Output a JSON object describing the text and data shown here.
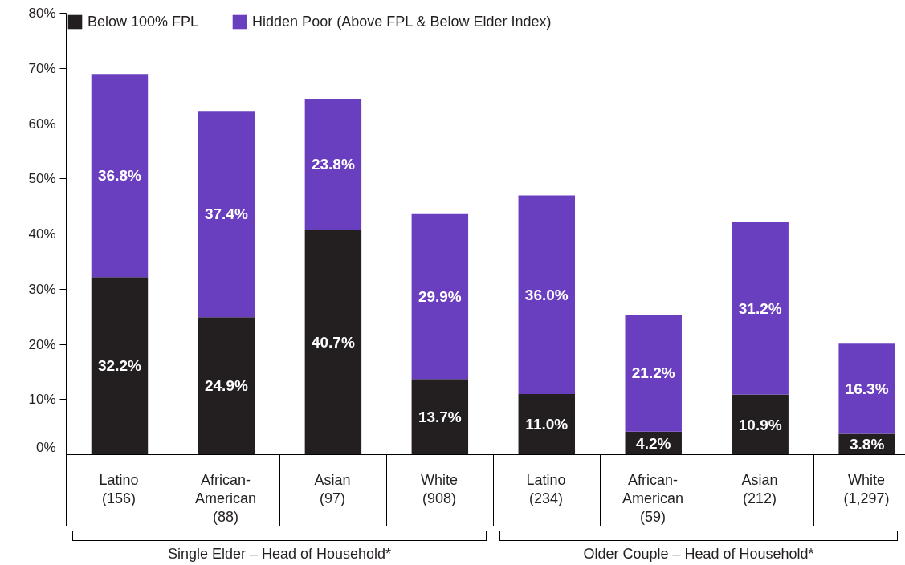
{
  "chart_data": {
    "type": "bar",
    "stacked": true,
    "categories": [
      "Latino\n(156)",
      "African-\nAmerican\n(88)",
      "Asian\n(97)",
      "White\n(908)",
      "Latino\n(234)",
      "African-\nAmerican\n(59)",
      "Asian\n(212)",
      "White\n(1,297)"
    ],
    "series": [
      {
        "name": "Below 100% FPL",
        "color": "#231f20",
        "values": [
          32.2,
          24.9,
          40.7,
          13.7,
          11.0,
          4.2,
          10.9,
          3.8
        ],
        "value_labels": [
          "32.2%",
          "24.9%",
          "40.7%",
          "13.7%",
          "11.0%",
          "4.2%",
          "10.9%",
          "3.8%"
        ]
      },
      {
        "name": "Hidden Poor (Above FPL & Below Elder Index)",
        "color": "#6a3fbf",
        "values": [
          36.8,
          37.4,
          23.8,
          29.9,
          36.0,
          21.2,
          31.2,
          16.3
        ],
        "value_labels": [
          "36.8%",
          "37.4%",
          "23.8%",
          "29.9%",
          "36.0%",
          "21.2%",
          "31.2%",
          "16.3%"
        ]
      }
    ],
    "ylim": [
      0,
      80
    ],
    "yticks": [
      {
        "value": 0,
        "label": "0%"
      },
      {
        "value": 10,
        "label": "10%"
      },
      {
        "value": 20,
        "label": "20%"
      },
      {
        "value": 30,
        "label": "30%"
      },
      {
        "value": 40,
        "label": "40%"
      },
      {
        "value": 50,
        "label": "50%"
      },
      {
        "value": 60,
        "label": "60%"
      },
      {
        "value": 70,
        "label": "70%"
      },
      {
        "value": 80,
        "label": "80%"
      }
    ],
    "grid": false,
    "legend": "top left",
    "annotations": [
      "Single Elder – Head of Household*",
      "Older Couple – Head of Household*"
    ]
  }
}
